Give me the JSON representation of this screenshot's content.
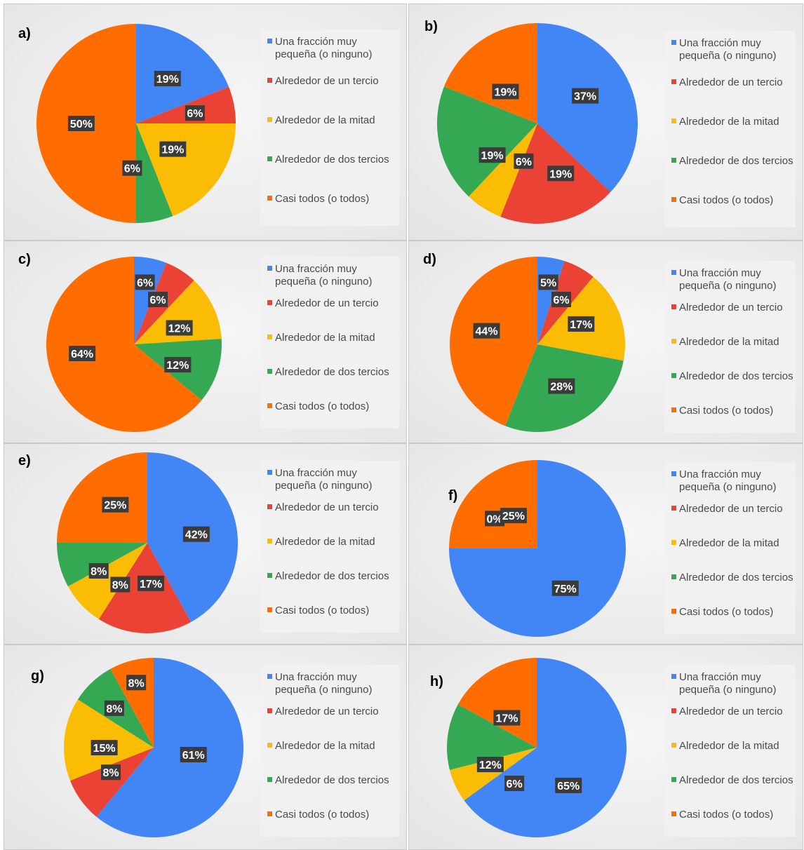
{
  "colors": {
    "Una fracción muy pequeña (o ninguno)": "#4285f4",
    "Alrededor de un tercio": "#ea4335",
    "Alrededor de la mitad": "#fbbc04",
    "Alrededor de dos tercios": "#34a853",
    "Casi todos (o todos)": "#ff6d01"
  },
  "legend": [
    [
      "Una fracción muy",
      "pequeña (o ninguno)"
    ],
    [
      "Alrededor de un tercio"
    ],
    [
      "Alrededor de la mitad"
    ],
    [
      "Alrededor de dos tercios"
    ],
    [
      "Casi todos (o todos)"
    ]
  ],
  "chart_data": [
    {
      "type": "pie",
      "panel_label": "a)",
      "categories": [
        "Una fracción muy pequeña (o ninguno)",
        "Alrededor de un tercio",
        "Alrededor de la mitad",
        "Alrededor de dos tercios",
        "Casi todos (o todos)"
      ],
      "values": [
        19,
        6,
        19,
        6,
        50
      ],
      "labels": [
        "19%",
        "6%",
        "19%",
        "6%",
        "50%"
      ]
    },
    {
      "type": "pie",
      "panel_label": "b)",
      "categories": [
        "Una fracción muy pequeña (o ninguno)",
        "Alrededor de un tercio",
        "Alrededor de la mitad",
        "Alrededor de dos tercios",
        "Casi todos (o todos)"
      ],
      "values": [
        37,
        19,
        6,
        19,
        19
      ],
      "labels": [
        "37%",
        "19%",
        "6%",
        "19%",
        "19%"
      ]
    },
    {
      "type": "pie",
      "panel_label": "c)",
      "categories": [
        "Una fracción muy pequeña (o ninguno)",
        "Alrededor de un tercio",
        "Alrededor de la mitad",
        "Alrededor de dos tercios",
        "Casi todos (o todos)"
      ],
      "values": [
        6,
        6,
        12,
        12,
        64
      ],
      "labels": [
        "6%",
        "6%",
        "12%",
        "12%",
        "64%"
      ]
    },
    {
      "type": "pie",
      "panel_label": "d)",
      "categories": [
        "Una fracción muy pequeña (o ninguno)",
        "Alrededor de un tercio",
        "Alrededor de la mitad",
        "Alrededor de dos tercios",
        "Casi todos (o todos)"
      ],
      "values": [
        5,
        6,
        17,
        28,
        44
      ],
      "labels": [
        "5%",
        "6%",
        "17%",
        "28%",
        "44%"
      ]
    },
    {
      "type": "pie",
      "panel_label": "e)",
      "categories": [
        "Una fracción muy pequeña (o ninguno)",
        "Alrededor de un tercio",
        "Alrededor de la mitad",
        "Alrededor de dos tercios",
        "Casi todos (o todos)"
      ],
      "values": [
        42,
        17,
        8,
        8,
        25
      ],
      "labels": [
        "42%",
        "17%",
        "8%",
        "8%",
        "25%"
      ]
    },
    {
      "type": "pie",
      "panel_label": "f)",
      "categories": [
        "Una fracción muy pequeña (o ninguno)",
        "Alrededor de un tercio",
        "Alrededor de la mitad",
        "Alrededor de dos tercios",
        "Casi todos (o todos)"
      ],
      "values": [
        75,
        0,
        0,
        0,
        25
      ],
      "labels": [
        "75%",
        "",
        "",
        "0%",
        "25%"
      ]
    },
    {
      "type": "pie",
      "panel_label": "g)",
      "categories": [
        "Una fracción muy pequeña (o ninguno)",
        "Alrededor de un tercio",
        "Alrededor de la mitad",
        "Alrededor de dos tercios",
        "Casi todos (o todos)"
      ],
      "values": [
        61,
        8,
        15,
        8,
        8
      ],
      "labels": [
        "61%",
        "8%",
        "15%",
        "8%",
        "8%"
      ]
    },
    {
      "type": "pie",
      "panel_label": "h)",
      "categories": [
        "Una fracción muy pequeña (o ninguno)",
        "Alrededor de un tercio",
        "Alrededor de la mitad",
        "Alrededor de dos tercios",
        "Casi todos (o todos)"
      ],
      "values": [
        65,
        0,
        6,
        12,
        17
      ],
      "labels": [
        "65%",
        "",
        "6%",
        "12%",
        "17%"
      ]
    }
  ]
}
